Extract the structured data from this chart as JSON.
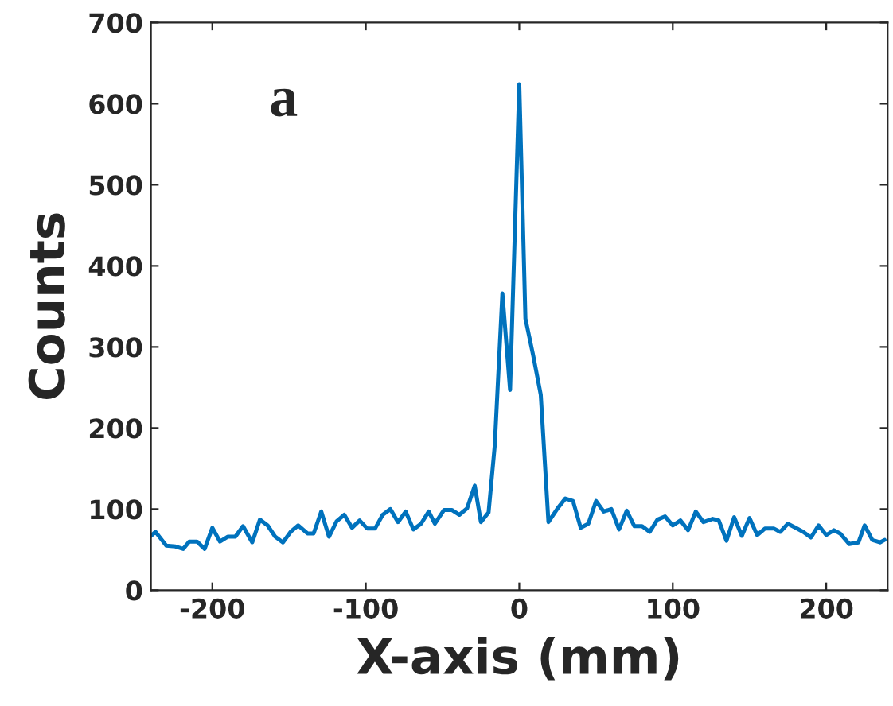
{
  "chart_data": {
    "type": "line",
    "xlabel": "X-axis (mm)",
    "ylabel": "Counts",
    "annotations": [
      "a"
    ],
    "x": [
      -240,
      -237,
      -230,
      -224,
      -219,
      -215,
      -210,
      -205,
      -200,
      -195,
      -190,
      -185,
      -180,
      -174,
      -169,
      -164,
      -159,
      -154,
      -149,
      -144,
      -138,
      -134,
      -129,
      -124,
      -119,
      -114,
      -109,
      -104,
      -99,
      -94,
      -89,
      -84,
      -79,
      -74,
      -69,
      -64,
      -59,
      -55,
      -49,
      -44,
      -39,
      -34,
      -29,
      -25,
      -20,
      -16,
      -11,
      -6,
      0,
      4,
      9,
      14,
      19,
      25,
      30,
      35,
      40,
      45,
      50,
      55,
      60,
      65,
      70,
      75,
      80,
      85,
      90,
      95,
      100,
      105,
      110,
      115,
      120,
      126,
      130,
      135,
      140,
      145,
      150,
      155,
      160,
      166,
      170,
      175,
      180,
      185,
      190,
      195,
      200,
      205,
      209,
      215,
      221,
      225,
      230,
      235,
      238
    ],
    "series": [
      {
        "color": "#0072bd",
        "values": [
          67,
          72,
          55,
          54,
          51,
          60,
          60,
          51,
          77,
          60,
          66,
          66,
          79,
          59,
          87,
          80,
          66,
          59,
          72,
          80,
          70,
          70,
          97,
          66,
          85,
          93,
          77,
          86,
          76,
          76,
          93,
          100,
          84,
          97,
          75,
          82,
          97,
          82,
          99,
          99,
          93,
          101,
          129,
          84,
          96,
          178,
          366,
          247,
          624,
          335,
          290,
          241,
          84,
          101,
          113,
          110,
          77,
          82,
          110,
          97,
          100,
          75,
          98,
          79,
          79,
          72,
          87,
          91,
          80,
          86,
          74,
          97,
          84,
          88,
          86,
          61,
          90,
          67,
          89,
          68,
          76,
          76,
          72,
          82,
          77,
          72,
          65,
          80,
          68,
          74,
          70,
          57,
          59,
          80,
          62,
          59,
          62
        ]
      }
    ],
    "xlim": [
      -240,
      240
    ],
    "xticks": [
      -200,
      -100,
      0,
      100,
      200
    ],
    "ylim": [
      0,
      700
    ],
    "yticks": [
      0,
      100,
      200,
      300,
      400,
      500,
      600,
      700
    ],
    "grid": false,
    "marker": "none",
    "line_style": "solid"
  }
}
